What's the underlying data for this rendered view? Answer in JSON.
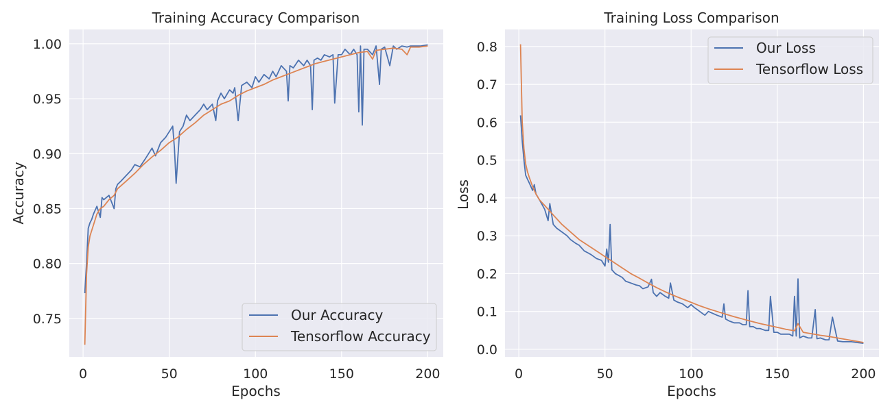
{
  "chart_data": [
    {
      "type": "line",
      "title": "Training Accuracy Comparison",
      "xlabel": "Epochs",
      "ylabel": "Accuracy",
      "xlim": [
        -8,
        209
      ],
      "ylim": [
        0.715,
        1.013
      ],
      "x_ticks": [
        0,
        50,
        100,
        150,
        200
      ],
      "y_ticks": [
        0.75,
        0.8,
        0.85,
        0.9,
        0.95,
        1.0
      ],
      "x_tick_labels": [
        "0",
        "50",
        "100",
        "150",
        "200"
      ],
      "y_tick_labels": [
        "0.75",
        "0.80",
        "0.85",
        "0.90",
        "0.95",
        "1.00"
      ],
      "grid": true,
      "legend_position": "bottom-right",
      "legend": [
        "Our Accuracy",
        "Tensorflow Accuracy"
      ],
      "series": [
        {
          "name": "Our Accuracy",
          "color": "#4c72b0",
          "x": [
            1,
            2,
            3,
            4,
            5,
            6,
            8,
            10,
            11,
            12,
            15,
            18,
            19,
            20,
            22,
            25,
            28,
            30,
            33,
            36,
            38,
            40,
            42,
            45,
            48,
            50,
            52,
            53,
            54,
            56,
            58,
            60,
            62,
            65,
            68,
            70,
            72,
            75,
            77,
            78,
            80,
            82,
            85,
            87,
            88,
            90,
            92,
            95,
            98,
            100,
            102,
            105,
            108,
            110,
            112,
            115,
            118,
            119,
            120,
            122,
            125,
            128,
            130,
            132,
            133,
            134,
            136,
            138,
            140,
            143,
            145,
            146,
            148,
            150,
            152,
            155,
            157,
            159,
            160,
            161,
            162,
            163,
            165,
            168,
            170,
            172,
            173,
            175,
            178,
            180,
            182,
            185,
            188,
            190,
            193,
            196,
            200
          ],
          "y": [
            0.773,
            0.8,
            0.832,
            0.837,
            0.84,
            0.845,
            0.852,
            0.842,
            0.86,
            0.858,
            0.862,
            0.85,
            0.868,
            0.872,
            0.875,
            0.88,
            0.885,
            0.89,
            0.888,
            0.895,
            0.9,
            0.905,
            0.898,
            0.91,
            0.915,
            0.92,
            0.925,
            0.905,
            0.873,
            0.92,
            0.925,
            0.935,
            0.93,
            0.935,
            0.94,
            0.945,
            0.94,
            0.945,
            0.93,
            0.948,
            0.955,
            0.95,
            0.958,
            0.955,
            0.96,
            0.93,
            0.962,
            0.965,
            0.96,
            0.97,
            0.965,
            0.972,
            0.968,
            0.975,
            0.97,
            0.98,
            0.975,
            0.948,
            0.98,
            0.978,
            0.985,
            0.98,
            0.985,
            0.98,
            0.94,
            0.985,
            0.987,
            0.985,
            0.99,
            0.988,
            0.99,
            0.946,
            0.99,
            0.99,
            0.995,
            0.99,
            0.995,
            0.99,
            0.938,
            0.998,
            0.926,
            0.995,
            0.995,
            0.99,
            0.998,
            0.963,
            0.995,
            0.997,
            0.98,
            0.998,
            0.995,
            0.998,
            0.997,
            0.998,
            0.998,
            0.998,
            0.999
          ]
        },
        {
          "name": "Tensorflow Accuracy",
          "color": "#dd8452",
          "x": [
            1,
            2,
            3,
            4,
            6,
            8,
            10,
            12,
            15,
            18,
            20,
            25,
            30,
            35,
            40,
            45,
            50,
            55,
            60,
            65,
            70,
            75,
            80,
            85,
            90,
            95,
            100,
            105,
            110,
            115,
            120,
            125,
            130,
            135,
            140,
            145,
            150,
            155,
            160,
            165,
            168,
            170,
            175,
            180,
            185,
            188,
            190,
            195,
            200
          ],
          "y": [
            0.726,
            0.79,
            0.815,
            0.825,
            0.835,
            0.845,
            0.85,
            0.852,
            0.858,
            0.862,
            0.868,
            0.875,
            0.882,
            0.89,
            0.897,
            0.903,
            0.91,
            0.915,
            0.922,
            0.928,
            0.935,
            0.94,
            0.945,
            0.948,
            0.953,
            0.957,
            0.96,
            0.963,
            0.967,
            0.97,
            0.973,
            0.976,
            0.979,
            0.982,
            0.984,
            0.986,
            0.988,
            0.99,
            0.992,
            0.993,
            0.986,
            0.994,
            0.995,
            0.996,
            0.995,
            0.99,
            0.997,
            0.997,
            0.998
          ]
        }
      ]
    },
    {
      "type": "line",
      "title": "Training Loss Comparison",
      "xlabel": "Epochs",
      "ylabel": "Loss",
      "xlim": [
        -8,
        209
      ],
      "ylim": [
        -0.02,
        0.845
      ],
      "x_ticks": [
        0,
        50,
        100,
        150,
        200
      ],
      "y_ticks": [
        0,
        0.1,
        0.2,
        0.3,
        0.4,
        0.5,
        0.6,
        0.7,
        0.8
      ],
      "x_tick_labels": [
        "0",
        "50",
        "100",
        "150",
        "200"
      ],
      "y_tick_labels": [
        "0.0",
        "0.1",
        "0.2",
        "0.3",
        "0.4",
        "0.5",
        "0.6",
        "0.7",
        "0.8"
      ],
      "grid": true,
      "legend_position": "top-right",
      "legend": [
        "Our Loss",
        "Tensorflow Loss"
      ],
      "series": [
        {
          "name": "Our Loss",
          "color": "#4c72b0",
          "x": [
            1,
            2,
            3,
            4,
            5,
            6,
            8,
            9,
            10,
            12,
            15,
            17,
            18,
            20,
            22,
            25,
            28,
            30,
            33,
            35,
            38,
            40,
            42,
            45,
            48,
            50,
            51,
            52,
            53,
            54,
            56,
            58,
            60,
            62,
            65,
            68,
            70,
            72,
            75,
            77,
            78,
            80,
            82,
            85,
            87,
            88,
            90,
            92,
            95,
            98,
            100,
            102,
            105,
            108,
            110,
            115,
            118,
            119,
            120,
            122,
            125,
            128,
            130,
            132,
            133,
            134,
            136,
            138,
            140,
            143,
            145,
            146,
            148,
            150,
            152,
            155,
            157,
            159,
            160,
            161,
            162,
            163,
            165,
            168,
            170,
            172,
            173,
            175,
            178,
            180,
            182,
            185,
            188,
            190,
            193,
            196,
            200
          ],
          "y": [
            0.618,
            0.55,
            0.5,
            0.46,
            0.45,
            0.44,
            0.42,
            0.435,
            0.41,
            0.395,
            0.37,
            0.34,
            0.385,
            0.33,
            0.32,
            0.31,
            0.3,
            0.29,
            0.28,
            0.275,
            0.26,
            0.255,
            0.25,
            0.24,
            0.235,
            0.22,
            0.265,
            0.23,
            0.33,
            0.21,
            0.2,
            0.195,
            0.19,
            0.18,
            0.175,
            0.17,
            0.168,
            0.16,
            0.165,
            0.185,
            0.15,
            0.14,
            0.15,
            0.14,
            0.135,
            0.175,
            0.13,
            0.125,
            0.12,
            0.11,
            0.118,
            0.11,
            0.1,
            0.09,
            0.1,
            0.09,
            0.085,
            0.12,
            0.08,
            0.075,
            0.07,
            0.07,
            0.065,
            0.065,
            0.155,
            0.06,
            0.06,
            0.055,
            0.055,
            0.05,
            0.05,
            0.14,
            0.045,
            0.045,
            0.04,
            0.04,
            0.04,
            0.035,
            0.14,
            0.035,
            0.186,
            0.03,
            0.035,
            0.03,
            0.03,
            0.105,
            0.028,
            0.03,
            0.025,
            0.025,
            0.085,
            0.022,
            0.02,
            0.02,
            0.02,
            0.018,
            0.016
          ]
        },
        {
          "name": "Tensorflow Loss",
          "color": "#dd8452",
          "x": [
            1,
            2,
            3,
            4,
            5,
            6,
            8,
            10,
            12,
            15,
            18,
            20,
            25,
            30,
            35,
            40,
            45,
            50,
            55,
            60,
            65,
            70,
            75,
            80,
            85,
            90,
            95,
            100,
            105,
            110,
            115,
            120,
            125,
            130,
            135,
            140,
            145,
            150,
            155,
            160,
            162,
            165,
            170,
            175,
            180,
            185,
            190,
            195,
            200
          ],
          "y": [
            0.806,
            0.6,
            0.53,
            0.49,
            0.47,
            0.455,
            0.43,
            0.41,
            0.395,
            0.38,
            0.365,
            0.355,
            0.33,
            0.31,
            0.29,
            0.275,
            0.26,
            0.245,
            0.23,
            0.215,
            0.2,
            0.188,
            0.175,
            0.163,
            0.152,
            0.142,
            0.133,
            0.124,
            0.115,
            0.107,
            0.1,
            0.093,
            0.086,
            0.08,
            0.074,
            0.068,
            0.063,
            0.058,
            0.053,
            0.049,
            0.068,
            0.045,
            0.041,
            0.037,
            0.034,
            0.03,
            0.026,
            0.022,
            0.018
          ]
        }
      ]
    }
  ]
}
